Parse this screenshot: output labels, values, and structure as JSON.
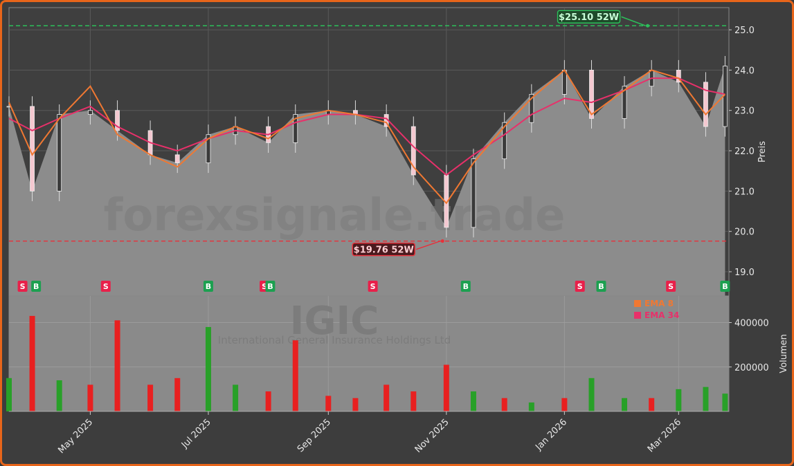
{
  "chart_data": [
    {
      "type": "candlestick",
      "ylabel": "Preis",
      "ylim": [
        18.4,
        25.55
      ],
      "yticks": [
        "19.0",
        "20.0",
        "21.0",
        "22.0",
        "23.0",
        "24.0",
        "25.0"
      ],
      "ytick_values": [
        19,
        20,
        21,
        22,
        23,
        24,
        25
      ],
      "x": [
        "2025-03-20",
        "2025-04-01",
        "2025-04-15",
        "2025-05-01",
        "2025-05-15",
        "2025-06-01",
        "2025-06-15",
        "2025-07-01",
        "2025-07-15",
        "2025-08-01",
        "2025-08-15",
        "2025-09-01",
        "2025-09-15",
        "2025-10-01",
        "2025-10-15",
        "2025-11-01",
        "2025-11-15",
        "2025-12-01",
        "2025-12-15",
        "2026-01-01",
        "2026-01-15",
        "2026-02-01",
        "2026-02-15",
        "2026-03-01",
        "2026-03-15",
        "2026-03-25"
      ],
      "close": [
        23.1,
        21.0,
        22.9,
        23.0,
        22.5,
        21.9,
        21.7,
        22.4,
        22.6,
        22.2,
        22.9,
        23.0,
        22.9,
        22.6,
        21.4,
        20.1,
        21.8,
        22.7,
        23.4,
        24.0,
        22.8,
        23.6,
        24.0,
        23.7,
        22.6,
        24.1
      ],
      "ema8": [
        23.2,
        21.9,
        22.8,
        23.6,
        22.4,
        21.9,
        21.6,
        22.3,
        22.6,
        22.3,
        22.8,
        23.0,
        22.9,
        22.7,
        21.6,
        20.7,
        21.7,
        22.6,
        23.3,
        24.0,
        22.9,
        23.5,
        24.0,
        23.8,
        22.9,
        23.4
      ],
      "ema34": [
        22.8,
        22.5,
        22.8,
        23.1,
        22.6,
        22.2,
        22.0,
        22.3,
        22.5,
        22.4,
        22.7,
        22.9,
        22.9,
        22.8,
        22.1,
        21.4,
        21.9,
        22.4,
        22.9,
        23.3,
        23.2,
        23.5,
        23.8,
        23.8,
        23.5,
        23.4
      ],
      "ema8_color": "#f07832",
      "ema34_color": "#e8306a",
      "up_color": "#28a028",
      "down_color": "#e82020",
      "annotations": [
        {
          "label": "$25.10 52W",
          "value": 25.1,
          "date": "2026-02-13",
          "color": "#2cbf5a"
        },
        {
          "label": "$19.76 52W",
          "value": 19.76,
          "date": "2025-10-30",
          "color": "#e8303a"
        }
      ],
      "signals": [
        {
          "label": "S",
          "date": "2025-03-27"
        },
        {
          "label": "B",
          "date": "2025-04-03"
        },
        {
          "label": "S",
          "date": "2025-05-09"
        },
        {
          "label": "B",
          "date": "2025-07-01"
        },
        {
          "label": "S",
          "date": "2025-07-30"
        },
        {
          "label": "B",
          "date": "2025-08-02"
        },
        {
          "label": "S",
          "date": "2025-09-24"
        },
        {
          "label": "B",
          "date": "2025-11-11"
        },
        {
          "label": "S",
          "date": "2026-01-09"
        },
        {
          "label": "B",
          "date": "2026-01-20"
        },
        {
          "label": "S",
          "date": "2026-02-25"
        },
        {
          "label": "B",
          "date": "2026-03-25"
        }
      ],
      "legend": [
        "EMA 8",
        "EMA 34"
      ],
      "watermark": "forexsignale.trade",
      "grid": true
    },
    {
      "type": "bar",
      "ylabel": "Volumen",
      "yticks": [
        "200000",
        "400000"
      ],
      "ytick_values": [
        200000,
        400000
      ],
      "ylim": [
        0,
        520000
      ],
      "x": [
        "2025-03-20",
        "2025-04-01",
        "2025-04-15",
        "2025-05-01",
        "2025-05-15",
        "2025-06-01",
        "2025-06-15",
        "2025-07-01",
        "2025-07-15",
        "2025-08-01",
        "2025-08-15",
        "2025-09-01",
        "2025-09-15",
        "2025-10-01",
        "2025-10-15",
        "2025-11-01",
        "2025-11-15",
        "2025-12-01",
        "2025-12-15",
        "2026-01-01",
        "2026-01-15",
        "2026-02-01",
        "2026-02-15",
        "2026-03-01",
        "2026-03-15",
        "2026-03-25"
      ],
      "values": [
        150000,
        430000,
        140000,
        120000,
        410000,
        120000,
        150000,
        380000,
        120000,
        90000,
        320000,
        70000,
        60000,
        120000,
        90000,
        210000,
        90000,
        60000,
        40000,
        60000,
        150000,
        60000,
        60000,
        100000,
        110000,
        80000
      ],
      "colors": [
        "up",
        "down",
        "up",
        "down",
        "down",
        "down",
        "down",
        "up",
        "up",
        "down",
        "down",
        "down",
        "down",
        "down",
        "down",
        "down",
        "up",
        "down",
        "up",
        "down",
        "up",
        "up",
        "down",
        "up",
        "up",
        "up"
      ],
      "watermark_title": "IGIC",
      "watermark_subtitle": "International General Insurance Holdings Ltd"
    }
  ],
  "x_axis": {
    "tick_labels": [
      "May 2025",
      "Jul 2025",
      "Sep 2025",
      "Nov 2025",
      "Jan 2026",
      "Mar 2026"
    ],
    "tick_dates": [
      "2025-05-01",
      "2025-07-01",
      "2025-09-01",
      "2025-11-01",
      "2026-01-01",
      "2026-03-01"
    ],
    "range": [
      "2025-03-20",
      "2026-03-27"
    ]
  },
  "theme": {
    "background": "#3d3d3d",
    "plot_bg": "#8a8a8a",
    "border": "#e8651a"
  }
}
